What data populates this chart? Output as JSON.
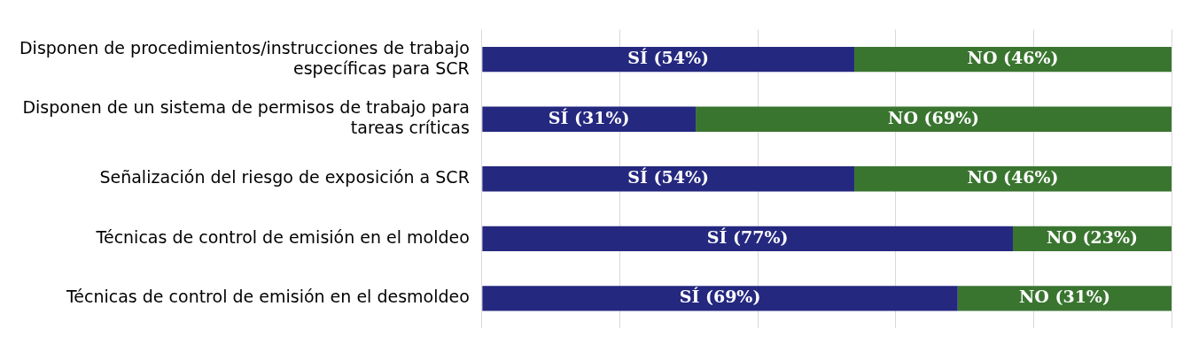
{
  "chart_data": {
    "type": "bar",
    "orientation": "horizontal",
    "stacked": true,
    "categories": [
      "Disponen de procedimientos/instrucciones de trabajo específicas para SCR",
      "Disponen de un sistema de permisos de trabajo para tareas críticas",
      "Señalización del riesgo de exposición a SCR",
      "Técnicas de control de emisión en el moldeo",
      "Técnicas de control de emisión en el desmoldeo"
    ],
    "series": [
      {
        "color": "#25287f",
        "values": [
          54,
          31,
          54,
          77,
          69
        ],
        "value_labels": [
          "SÍ (54%)",
          "SÍ (31%)",
          "SÍ (54%)",
          "SÍ (77%)",
          "SÍ (69%)"
        ]
      },
      {
        "color": "#3a7530",
        "values": [
          46,
          69,
          46,
          23,
          31
        ],
        "value_labels": [
          "NO (46%)",
          "NO (69%)",
          "NO (46%)",
          "NO (23%)",
          "NO (31%)"
        ]
      }
    ],
    "xlim": [
      0,
      100
    ],
    "xticks": [
      {
        "value": 0,
        "label": null
      },
      {
        "value": 20,
        "label": null
      },
      {
        "value": 40,
        "label": null
      },
      {
        "value": 60,
        "label": null
      },
      {
        "value": 80,
        "label": null
      },
      {
        "value": 100,
        "label": null
      }
    ],
    "grid": "x",
    "tick_labels": "y",
    "legend": false
  }
}
